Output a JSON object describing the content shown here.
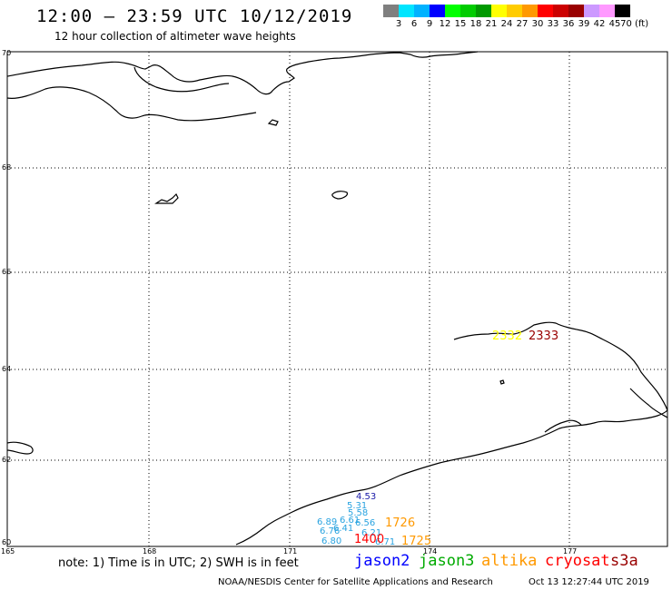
{
  "header": {
    "title": "12:00 – 23:59 UTC 10/12/2019",
    "subtitle": "12 hour collection of altimeter wave heights"
  },
  "colorbar": {
    "colors": [
      "#7f7f7f",
      "#00e5ff",
      "#00b2ff",
      "#0000ff",
      "#00ff00",
      "#00cc00",
      "#009900",
      "#ffff00",
      "#ffcc00",
      "#ff9900",
      "#ff0000",
      "#cc0000",
      "#990000",
      "#cc99ff",
      "#ff99ff",
      "#000000"
    ],
    "labels": [
      "3",
      "6",
      "9",
      "12",
      "15",
      "18",
      "21",
      "24",
      "27",
      "30",
      "33",
      "36",
      "39",
      "42",
      "45",
      "70 (ft)"
    ]
  },
  "map": {
    "lat_labels": [
      "70",
      "68",
      "66",
      "64",
      "62",
      "60"
    ],
    "lon_labels": [
      "165",
      "168",
      "171",
      "174",
      "177"
    ]
  },
  "observations": [
    {
      "text": "4.53",
      "color": "#1a1aa8"
    },
    {
      "text": "5.31",
      "color": "#29a3e0"
    },
    {
      "text": "5.58",
      "color": "#29a3e0"
    },
    {
      "text": "6.61",
      "color": "#29a3e0"
    },
    {
      "text": "6.56",
      "color": "#29a3e0"
    },
    {
      "text": "6.89",
      "color": "#29a3e0"
    },
    {
      "text": "6.41",
      "color": "#29a3e0"
    },
    {
      "text": "6.21",
      "color": "#29a3e0"
    },
    {
      "text": "6.76",
      "color": "#29a3e0"
    },
    {
      "text": "6.80",
      "color": "#29a3e0"
    },
    {
      "text": "6.71",
      "color": "#29a3e0"
    },
    {
      "text": "1726",
      "color": "#ff9900"
    },
    {
      "text": "1725",
      "color": "#ff9900"
    },
    {
      "text": "1400",
      "color": "#ff0000"
    },
    {
      "text": "2333",
      "color": "#990000"
    },
    {
      "text": "2332",
      "color": "#ffff00"
    }
  ],
  "note": "note: 1) Time is in UTC; 2) SWH is in feet",
  "legend": [
    {
      "label": "jason2",
      "color": "#0000ff"
    },
    {
      "label": "jason3",
      "color": "#00aa00"
    },
    {
      "label": "altika",
      "color": "#ff9900"
    },
    {
      "label": "cryosat",
      "color": "#ff0000"
    },
    {
      "label": "s3a",
      "color": "#990000"
    }
  ],
  "footer": {
    "credit": "NOAA/NESDIS Center for Satellite Applications and Research",
    "timestamp": "Oct 13 12:27:44 UTC 2019"
  }
}
